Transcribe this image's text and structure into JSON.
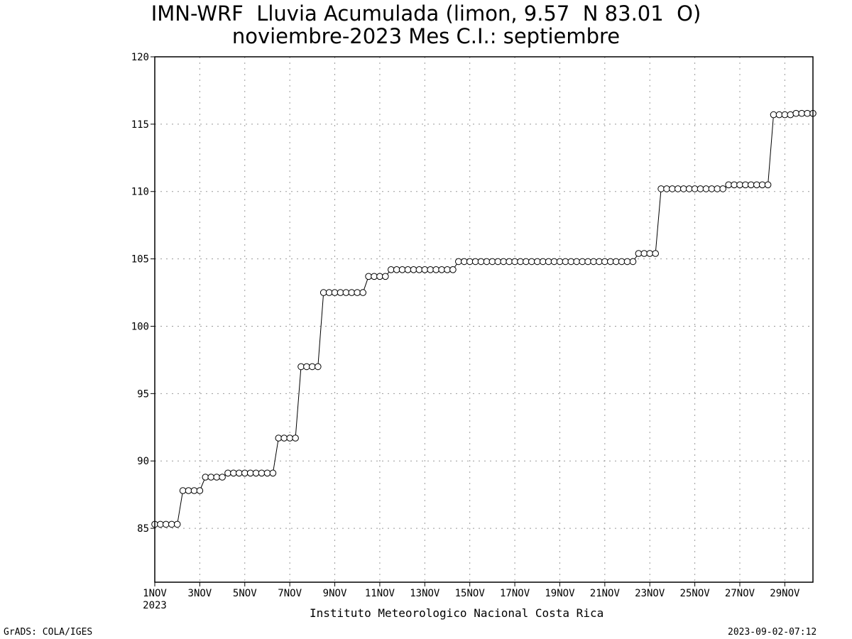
{
  "title_line1": "IMN-WRF  Lluvia Acumulada (limon, 9.57  N 83.01  O)",
  "title_line2": "noviembre-2023 Mes C.I.: septiembre",
  "footer_left": "GrADS: COLA/IGES",
  "footer_right": "2023-09-02-07:12",
  "credit": "Instituto Meteorologico Nacional Costa Rica",
  "chart_data": {
    "type": "line",
    "title": "IMN-WRF  Lluvia Acumulada (limon, 9.57  N 83.01  O)",
    "subtitle": "noviembre-2023 Mes C.I.: septiembre",
    "xlabel": "",
    "ylabel": "",
    "ylim": [
      81,
      120
    ],
    "yticks": [
      85,
      90,
      95,
      100,
      105,
      110,
      115,
      120
    ],
    "x_unit": "dia de noviembre 2023 (cada 6 horas)",
    "xlim": [
      1,
      30
    ],
    "xticks": [
      "1NOV",
      "3NOV",
      "5NOV",
      "7NOV",
      "9NOV",
      "11NOV",
      "13NOV",
      "15NOV",
      "17NOV",
      "19NOV",
      "21NOV",
      "23NOV",
      "25NOV",
      "27NOV",
      "29NOV"
    ],
    "xtick_year": "2023",
    "grid": true,
    "marker": "open-circle",
    "series": [
      {
        "values": [
          85.3,
          85.3,
          85.3,
          85.3,
          85.3,
          87.8,
          87.8,
          87.8,
          87.8,
          88.8,
          88.8,
          88.8,
          88.8,
          89.1,
          89.1,
          89.1,
          89.1,
          89.1,
          89.1,
          89.1,
          89.1,
          89.1,
          91.7,
          91.7,
          91.7,
          91.7,
          97.0,
          97.0,
          97.0,
          97.0,
          102.5,
          102.5,
          102.5,
          102.5,
          102.5,
          102.5,
          102.5,
          102.5,
          103.7,
          103.7,
          103.7,
          103.7,
          104.2,
          104.2,
          104.2,
          104.2,
          104.2,
          104.2,
          104.2,
          104.2,
          104.2,
          104.2,
          104.2,
          104.2,
          104.8,
          104.8,
          104.8,
          104.8,
          104.8,
          104.8,
          104.8,
          104.8,
          104.8,
          104.8,
          104.8,
          104.8,
          104.8,
          104.8,
          104.8,
          104.8,
          104.8,
          104.8,
          104.8,
          104.8,
          104.8,
          104.8,
          104.8,
          104.8,
          104.8,
          104.8,
          104.8,
          104.8,
          104.8,
          104.8,
          104.8,
          104.8,
          105.4,
          105.4,
          105.4,
          105.4,
          110.2,
          110.2,
          110.2,
          110.2,
          110.2,
          110.2,
          110.2,
          110.2,
          110.2,
          110.2,
          110.2,
          110.2,
          110.5,
          110.5,
          110.5,
          110.5,
          110.5,
          110.5,
          110.5,
          110.5,
          115.7,
          115.7,
          115.7,
          115.7,
          115.8,
          115.8,
          115.8,
          115.8
        ]
      }
    ]
  }
}
